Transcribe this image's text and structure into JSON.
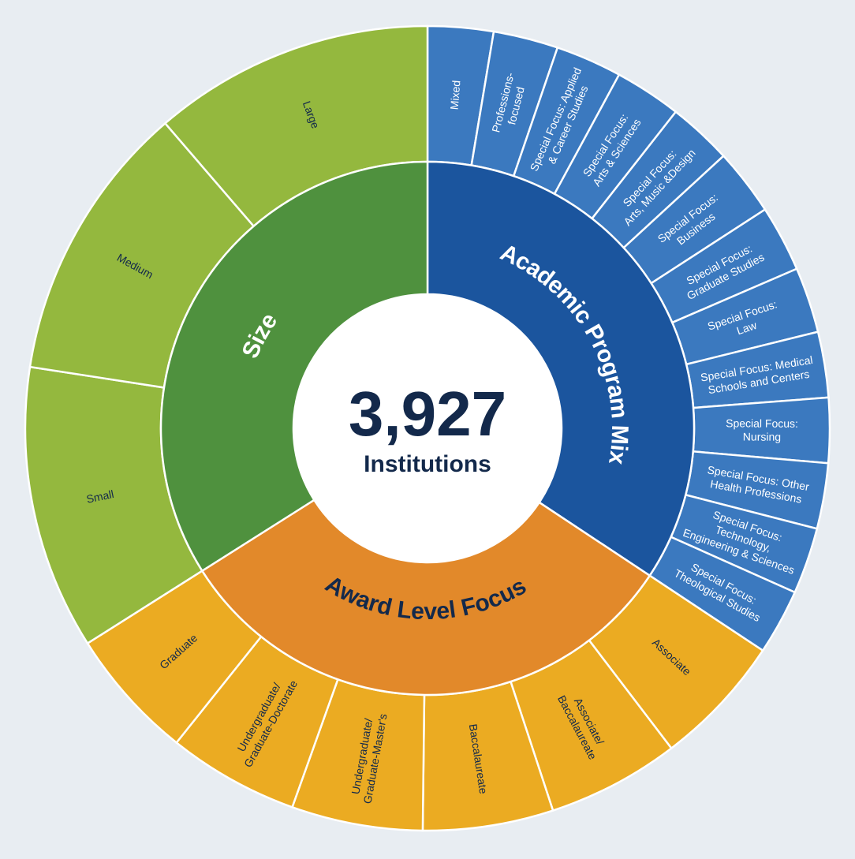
{
  "chart_data": {
    "type": "sunburst",
    "center": {
      "value": "3,927",
      "label": "Institutions"
    },
    "colors": {
      "background": "#e8edf2",
      "text_dark": "#13294b",
      "academic_inner": "#1b559e",
      "academic_outer": "#3b79bf",
      "award_inner": "#e2892a",
      "award_outer": "#ebab22",
      "size_inner": "#4f913e",
      "size_outer": "#94b83e"
    },
    "groups": [
      {
        "name": "Academic Program Mix",
        "inner_color": "#1b559e",
        "outer_color": "#3b79bf",
        "inner_text": "#ffffff",
        "outer_text": "#ffffff",
        "children": [
          {
            "lines": [
              "Mixed"
            ],
            "share_pct": 2.64
          },
          {
            "lines": [
              "Professions-",
              "focused"
            ],
            "share_pct": 2.61
          },
          {
            "lines": [
              "Special Focus: Applied",
              "& Career Studies"
            ],
            "share_pct": 2.67
          },
          {
            "lines": [
              "Special Focus:",
              "Arts & Sciences"
            ],
            "share_pct": 2.69
          },
          {
            "lines": [
              "Special Focus:",
              "Arts, Music &Design"
            ],
            "share_pct": 2.58
          },
          {
            "lines": [
              "Special Focus:",
              "Business"
            ],
            "share_pct": 2.69
          },
          {
            "lines": [
              "Special Focus:",
              "Graduate Studies"
            ],
            "share_pct": 2.67
          },
          {
            "lines": [
              "Special Focus:",
              "Law"
            ],
            "share_pct": 2.64
          },
          {
            "lines": [
              "Special Focus: Medical",
              "Schools and Centers"
            ],
            "share_pct": 2.64
          },
          {
            "lines": [
              "Special Focus:",
              "Nursing"
            ],
            "share_pct": 2.61
          },
          {
            "lines": [
              "Special Focus: Other",
              "Health Professions"
            ],
            "share_pct": 2.64
          },
          {
            "lines": [
              "Special Focus:",
              "Technology,",
              "Engineering & Sciences"
            ],
            "share_pct": 2.67
          },
          {
            "lines": [
              "Special Focus:",
              "Theological Studies"
            ],
            "share_pct": 2.64
          }
        ]
      },
      {
        "name": "Award Level Focus",
        "inner_color": "#e2892a",
        "outer_color": "#ebab22",
        "inner_text": "#13294b",
        "outer_text": "#13294b",
        "children": [
          {
            "lines": [
              "Associate"
            ],
            "share_pct": 5.33
          },
          {
            "lines": [
              "Associate/",
              "Baccalaureate"
            ],
            "share_pct": 5.33
          },
          {
            "lines": [
              "Baccalaureate"
            ],
            "share_pct": 5.25
          },
          {
            "lines": [
              "Undergraduate/",
              "Graduate-Master's"
            ],
            "share_pct": 5.28
          },
          {
            "lines": [
              "Undergraduate/",
              "Graduate-Doctorate"
            ],
            "share_pct": 5.28
          },
          {
            "lines": [
              "Graduate"
            ],
            "share_pct": 5.31
          }
        ]
      },
      {
        "name": "Size",
        "inner_color": "#4f913e",
        "outer_color": "#94b83e",
        "inner_text": "#ffffff",
        "outer_text": "#13294b",
        "children": [
          {
            "lines": [
              "Small"
            ],
            "share_pct": 11.44
          },
          {
            "lines": [
              "Medium"
            ],
            "share_pct": 11.28
          },
          {
            "lines": [
              "Large"
            ],
            "share_pct": 11.33
          }
        ]
      }
    ]
  }
}
